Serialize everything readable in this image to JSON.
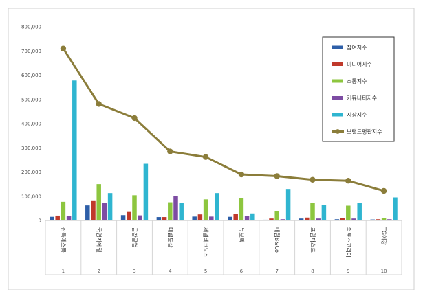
{
  "chart_data": {
    "type": "bar",
    "categories": [
      "삼육에스쁨",
      "국영지에젤",
      "금강공업",
      "대림통상",
      "제일테크노스",
      "뉴보텍",
      "대림B&Co",
      "프럼파스트",
      "와토스코리아",
      "TG애강"
    ],
    "ranks": [
      "1",
      "2",
      "3",
      "4",
      "5",
      "6",
      "7",
      "8",
      "9",
      "10"
    ],
    "ylim": [
      0,
      800000
    ],
    "yticks": [
      "0",
      "100,000",
      "200,000",
      "300,000",
      "400,000",
      "500,000",
      "600,000",
      "700,000",
      "800,000"
    ],
    "yticks_values": [
      0,
      100000,
      200000,
      300000,
      400000,
      500000,
      600000,
      700000,
      800000
    ],
    "series": [
      {
        "name": "참여지수",
        "color": "#2e5fa8",
        "values": [
          15000,
          62000,
          22000,
          14000,
          16000,
          15000,
          3000,
          8000,
          5000,
          4000
        ]
      },
      {
        "name": "미디어지수",
        "color": "#c0392b",
        "values": [
          20000,
          80000,
          35000,
          14000,
          25000,
          28000,
          8000,
          12000,
          10000,
          5000
        ]
      },
      {
        "name": "소통지수",
        "color": "#8dc63f",
        "values": [
          77000,
          150000,
          104000,
          75000,
          87000,
          93000,
          38000,
          72000,
          61000,
          10000
        ]
      },
      {
        "name": "커뮤니티지수",
        "color": "#7d4ca3",
        "values": [
          18000,
          73000,
          21000,
          100000,
          16000,
          18000,
          5000,
          8000,
          8000,
          5000
        ]
      },
      {
        "name": "시장지수",
        "color": "#2fb5d0",
        "values": [
          578000,
          113000,
          234000,
          73000,
          113000,
          29000,
          130000,
          64000,
          71000,
          95000
        ]
      }
    ],
    "line": {
      "name": "브랜드평판지수",
      "color": "#8b7d3a",
      "values": [
        710000,
        481000,
        423000,
        285000,
        262000,
        190000,
        183000,
        168000,
        164000,
        122000
      ]
    },
    "legend_position": "top-right",
    "grid": false
  }
}
